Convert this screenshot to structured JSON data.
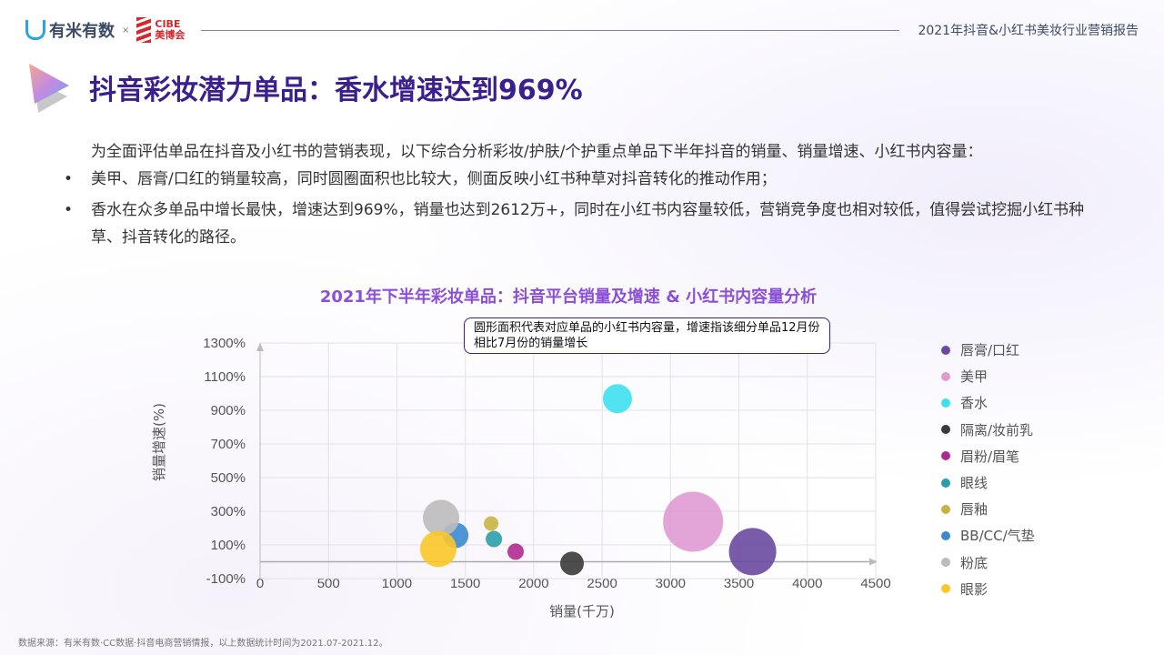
{
  "header": {
    "logo_youmi": "有米有数",
    "times": "×",
    "logo_cibe_en": "CIBE",
    "logo_cibe_cn": "美博会",
    "report_title": "2021年抖音&小红书美妆行业营销报告"
  },
  "slide": {
    "title": "抖音彩妆潜力单品：香水增速达到969%",
    "intro": "为全面评估单品在抖音及小红书的营销表现，以下综合分析彩妆/护肤/个护重点单品下半年抖音的销量、销量增速、小红书内容量：",
    "bullets": [
      "美甲、唇膏/口红的销量较高，同时圆圈面积也比较大，侧面反映小红书种草对抖音转化的推动作用；",
      "香水在众多单品中增长最快，增速达到969%，销量也达到2612万+，同时在小红书内容量较低，营销竞争度也相对较低，值得尝试挖掘小红书种草、抖音转化的路径。"
    ],
    "bullet_symbol": "•",
    "footer": "数据来源：有米有数·CC数据·抖音电商营销情报，以上数据统计时间为2021.07-2021.12。"
  },
  "chart_data": {
    "type": "scatter",
    "subtype": "bubble",
    "title": "2021年下半年彩妆单品：抖音平台销量及增速  & 小红书内容量分析",
    "annotation": "圆形面积代表对应单品的小红书内容量，增速指该细分单品12月份相比7月份的销量增长",
    "xlabel": "销量(千万)",
    "ylabel": "销量增速(%)",
    "xlim": [
      0,
      4500
    ],
    "ylim": [
      -100,
      1300
    ],
    "xticks": [
      "0",
      "500",
      "1000",
      "1500",
      "2000",
      "2500",
      "3000",
      "3500",
      "4000",
      "4500"
    ],
    "yticks": [
      "1300%",
      "1100%",
      "900%",
      "700%",
      "500%",
      "300%",
      "100%",
      "-100%"
    ],
    "grid": true,
    "legend_position": "right",
    "series": [
      {
        "name": "唇膏/口红",
        "x": 3600,
        "y": 60,
        "size": 676,
        "color": "#6a4aa0"
      },
      {
        "name": "美甲",
        "x": 3165,
        "y": 238,
        "size": 1089,
        "color": "#e09ad4"
      },
      {
        "name": "香水",
        "x": 2612,
        "y": 969,
        "size": 256,
        "color": "#3ee0f0"
      },
      {
        "name": "隔离/妆前乳",
        "x": 2280,
        "y": -10,
        "size": 169,
        "color": "#3a3a3a"
      },
      {
        "name": "眉粉/眉笔",
        "x": 1868,
        "y": 60,
        "size": 81,
        "color": "#b02a90"
      },
      {
        "name": "眼线",
        "x": 1709,
        "y": 135,
        "size": 81,
        "color": "#2a9ea8"
      },
      {
        "name": "唇釉",
        "x": 1689,
        "y": 227,
        "size": 64,
        "color": "#c8b440"
      },
      {
        "name": "BB/CC/气垫",
        "x": 1430,
        "y": 157,
        "size": 196,
        "color": "#3a8ad0"
      },
      {
        "name": "粉底",
        "x": 1323,
        "y": 260,
        "size": 400,
        "color": "#bdbbbd"
      },
      {
        "name": "眼影",
        "x": 1303,
        "y": 76,
        "size": 400,
        "color": "#fcc72a"
      }
    ]
  }
}
